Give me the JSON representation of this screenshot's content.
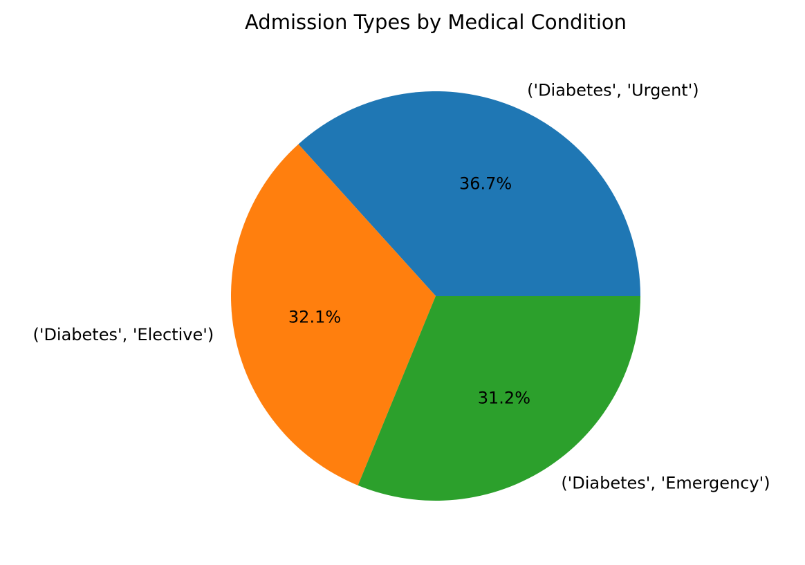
{
  "chart_data": {
    "type": "pie",
    "title": "Admission Types by Medical Condition",
    "categories": [
      "('Diabetes', 'Urgent')",
      "('Diabetes', 'Elective')",
      "('Diabetes', 'Emergency')"
    ],
    "values": [
      36.7,
      32.1,
      31.2
    ],
    "value_labels": [
      "36.7%",
      "32.1%",
      "31.2%"
    ],
    "colors": [
      "#1f77b4",
      "#ff7f0e",
      "#2ca02c"
    ],
    "start_angle_deg": 0,
    "direction": "counterclockwise",
    "legend": "none"
  }
}
